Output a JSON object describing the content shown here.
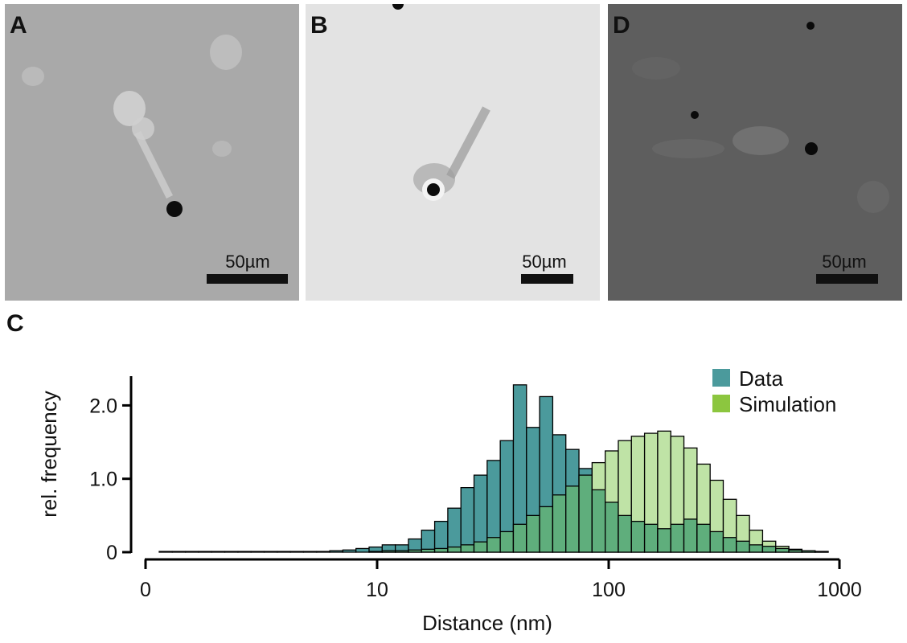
{
  "panels": [
    {
      "id": "A",
      "label": "A",
      "scale_label": "50µm",
      "bg": "#a9a9a9"
    },
    {
      "id": "B",
      "label": "B",
      "scale_label": "50µm",
      "bg": "#e2e2e2"
    },
    {
      "id": "D",
      "label": "D",
      "scale_label": "50µm",
      "bg": "#5f5f5f"
    }
  ],
  "chart_label": "C",
  "colors": {
    "data": "#4b9a9c",
    "simulation": "#bfe3a6",
    "overlap": "#5fae7c",
    "axis": "#000000"
  },
  "chart_data": {
    "type": "bar",
    "title": "",
    "xlabel": "Distance (nm)",
    "ylabel": "rel. frequency",
    "x_scale": "log",
    "x_ticks": [
      "0",
      "10",
      "100",
      "1000"
    ],
    "y_ticks": [
      "0",
      "1.0",
      "2.0"
    ],
    "ylim": [
      0,
      2.3
    ],
    "legend_position": "top-right",
    "series": [
      {
        "name": "Data",
        "values": [
          0.01,
          0.01,
          0.01,
          0.01,
          0.01,
          0.01,
          0.01,
          0.01,
          0.01,
          0.01,
          0.01,
          0.01,
          0.01,
          0.02,
          0.03,
          0.05,
          0.07,
          0.1,
          0.1,
          0.18,
          0.3,
          0.42,
          0.6,
          0.88,
          1.05,
          1.25,
          1.52,
          2.28,
          1.7,
          2.12,
          1.6,
          1.4,
          1.14,
          0.85,
          0.68,
          0.5,
          0.42,
          0.38,
          0.32,
          0.38,
          0.45,
          0.38,
          0.28,
          0.2,
          0.15,
          0.1,
          0.08,
          0.05,
          0.03,
          0.02,
          0.01
        ]
      },
      {
        "name": "Simulation",
        "values": [
          0.0,
          0.0,
          0.0,
          0.0,
          0.0,
          0.0,
          0.0,
          0.0,
          0.0,
          0.0,
          0.0,
          0.0,
          0.0,
          0.0,
          0.0,
          0.0,
          0.01,
          0.02,
          0.02,
          0.03,
          0.04,
          0.05,
          0.07,
          0.1,
          0.14,
          0.2,
          0.28,
          0.38,
          0.5,
          0.62,
          0.78,
          0.9,
          1.05,
          1.22,
          1.38,
          1.52,
          1.58,
          1.62,
          1.65,
          1.58,
          1.42,
          1.2,
          0.98,
          0.72,
          0.5,
          0.3,
          0.15,
          0.08,
          0.04,
          0.02,
          0.01
        ]
      }
    ]
  }
}
